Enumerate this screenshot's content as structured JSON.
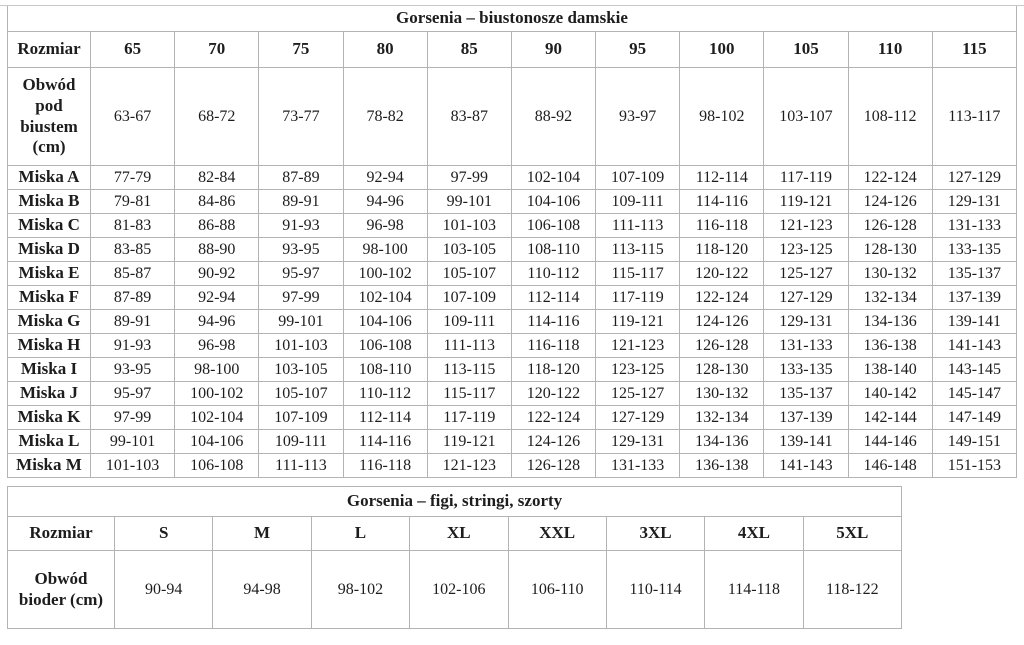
{
  "theme": {
    "background": "#ffffff",
    "text_color": "#1d1d1d",
    "border_color": "#b3b3b3"
  },
  "bra_table": {
    "title": "Gorsenia – biustonosze damskie",
    "size_label": "Rozmiar",
    "sizes": [
      "65",
      "70",
      "75",
      "80",
      "85",
      "90",
      "95",
      "100",
      "105",
      "110",
      "115"
    ],
    "underbust_label": "Obwód pod biustem (cm)",
    "underbust": [
      "63-67",
      "68-72",
      "73-77",
      "78-82",
      "83-87",
      "88-92",
      "93-97",
      "98-102",
      "103-107",
      "108-112",
      "113-117"
    ],
    "cups": [
      {
        "label": "Miska A",
        "values": [
          "77-79",
          "82-84",
          "87-89",
          "92-94",
          "97-99",
          "102-104",
          "107-109",
          "112-114",
          "117-119",
          "122-124",
          "127-129"
        ]
      },
      {
        "label": "Miska B",
        "values": [
          "79-81",
          "84-86",
          "89-91",
          "94-96",
          "99-101",
          "104-106",
          "109-111",
          "114-116",
          "119-121",
          "124-126",
          "129-131"
        ]
      },
      {
        "label": "Miska C",
        "values": [
          "81-83",
          "86-88",
          "91-93",
          "96-98",
          "101-103",
          "106-108",
          "111-113",
          "116-118",
          "121-123",
          "126-128",
          "131-133"
        ]
      },
      {
        "label": "Miska D",
        "values": [
          "83-85",
          "88-90",
          "93-95",
          "98-100",
          "103-105",
          "108-110",
          "113-115",
          "118-120",
          "123-125",
          "128-130",
          "133-135"
        ]
      },
      {
        "label": "Miska E",
        "values": [
          "85-87",
          "90-92",
          "95-97",
          "100-102",
          "105-107",
          "110-112",
          "115-117",
          "120-122",
          "125-127",
          "130-132",
          "135-137"
        ]
      },
      {
        "label": "Miska F",
        "values": [
          "87-89",
          "92-94",
          "97-99",
          "102-104",
          "107-109",
          "112-114",
          "117-119",
          "122-124",
          "127-129",
          "132-134",
          "137-139"
        ]
      },
      {
        "label": "Miska G",
        "values": [
          "89-91",
          "94-96",
          "99-101",
          "104-106",
          "109-111",
          "114-116",
          "119-121",
          "124-126",
          "129-131",
          "134-136",
          "139-141"
        ]
      },
      {
        "label": "Miska H",
        "values": [
          "91-93",
          "96-98",
          "101-103",
          "106-108",
          "111-113",
          "116-118",
          "121-123",
          "126-128",
          "131-133",
          "136-138",
          "141-143"
        ]
      },
      {
        "label": "Miska I",
        "values": [
          "93-95",
          "98-100",
          "103-105",
          "108-110",
          "113-115",
          "118-120",
          "123-125",
          "128-130",
          "133-135",
          "138-140",
          "143-145"
        ]
      },
      {
        "label": "Miska J",
        "values": [
          "95-97",
          "100-102",
          "105-107",
          "110-112",
          "115-117",
          "120-122",
          "125-127",
          "130-132",
          "135-137",
          "140-142",
          "145-147"
        ]
      },
      {
        "label": "Miska K",
        "values": [
          "97-99",
          "102-104",
          "107-109",
          "112-114",
          "117-119",
          "122-124",
          "127-129",
          "132-134",
          "137-139",
          "142-144",
          "147-149"
        ]
      },
      {
        "label": "Miska L",
        "values": [
          "99-101",
          "104-106",
          "109-111",
          "114-116",
          "119-121",
          "124-126",
          "129-131",
          "134-136",
          "139-141",
          "144-146",
          "149-151"
        ]
      },
      {
        "label": "Miska M",
        "values": [
          "101-103",
          "106-108",
          "111-113",
          "116-118",
          "121-123",
          "126-128",
          "131-133",
          "136-138",
          "141-143",
          "146-148",
          "151-153"
        ]
      }
    ]
  },
  "brief_table": {
    "title": "Gorsenia – figi, stringi, szorty",
    "size_label": "Rozmiar",
    "sizes": [
      "S",
      "M",
      "L",
      "XL",
      "XXL",
      "3XL",
      "4XL",
      "5XL"
    ],
    "hip_label": "Obwód bioder (cm)",
    "hips": [
      "90-94",
      "94-98",
      "98-102",
      "102-106",
      "106-110",
      "110-114",
      "114-118",
      "118-122"
    ]
  }
}
